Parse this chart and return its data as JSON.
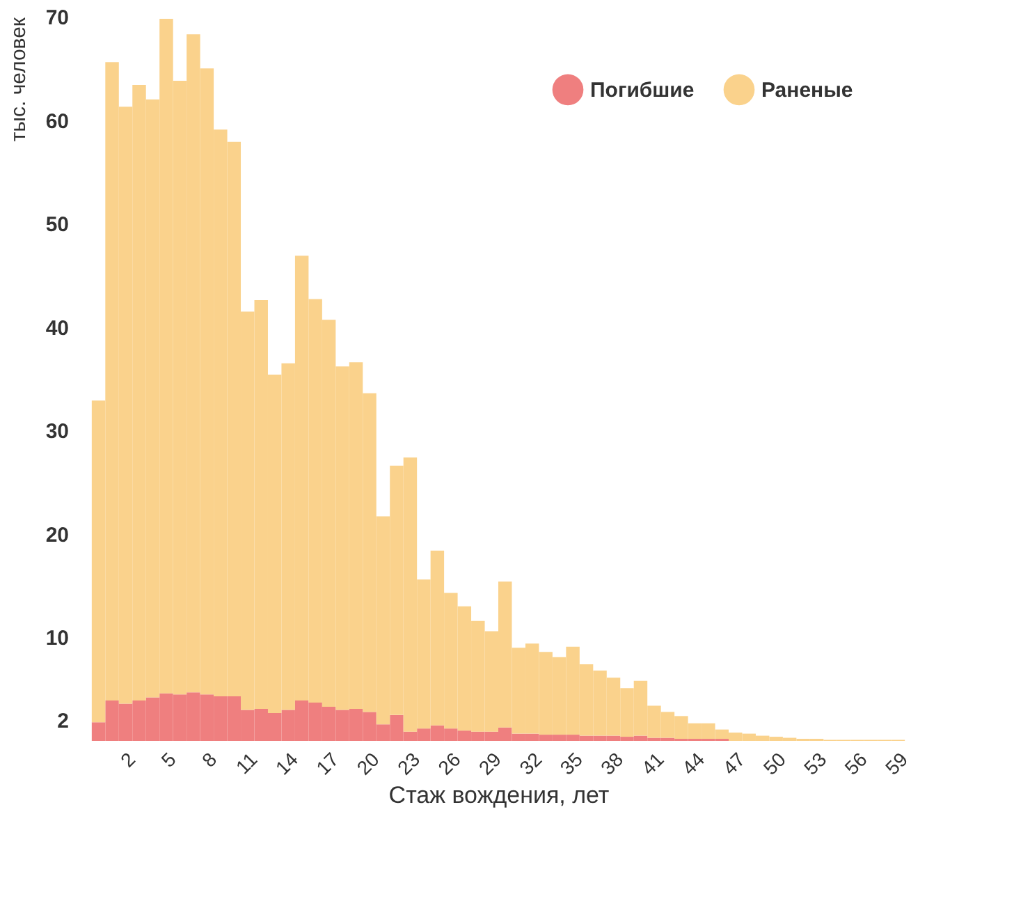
{
  "chart_data": {
    "type": "bar",
    "stacked": true,
    "xlabel": "Стаж вождения, лет",
    "ylabel": "тыс. человек",
    "categories": [
      null,
      null,
      "2",
      null,
      null,
      "5",
      null,
      null,
      "8",
      null,
      null,
      "11",
      null,
      null,
      "14",
      null,
      null,
      "17",
      null,
      null,
      "20",
      null,
      null,
      "23",
      null,
      null,
      "26",
      null,
      null,
      "29",
      null,
      null,
      "32",
      null,
      null,
      "35",
      null,
      null,
      "38",
      null,
      null,
      "41",
      null,
      null,
      "44",
      null,
      null,
      "47",
      null,
      null,
      "50",
      null,
      null,
      "53",
      null,
      null,
      "56",
      null,
      null,
      "59"
    ],
    "series": [
      {
        "name": "Погибшие",
        "color": "#ef7f7f",
        "values": [
          1.8,
          3.9,
          3.6,
          3.9,
          4.2,
          4.6,
          4.5,
          4.7,
          4.5,
          4.3,
          4.3,
          3.0,
          3.1,
          2.7,
          3.0,
          3.9,
          3.7,
          3.3,
          3.0,
          3.1,
          2.8,
          1.6,
          2.5,
          0.9,
          1.2,
          1.5,
          1.2,
          1.0,
          0.9,
          0.9,
          1.3,
          0.7,
          0.7,
          0.6,
          0.6,
          0.6,
          0.5,
          0.5,
          0.5,
          0.4,
          0.5,
          0.3,
          0.3,
          0.2,
          0.2,
          0.2,
          0.2,
          0,
          0,
          0,
          0,
          0,
          0,
          0,
          0,
          0,
          0,
          0,
          0,
          0
        ]
      },
      {
        "name": "Раненые",
        "color": "#fad28c",
        "values": [
          31.1,
          61.7,
          57.7,
          59.5,
          57.8,
          65.2,
          59.3,
          63.6,
          60.5,
          54.8,
          53.6,
          38.5,
          39.5,
          32.7,
          33.5,
          43.0,
          39.0,
          37.4,
          33.2,
          33.5,
          30.8,
          20.1,
          24.1,
          26.5,
          14.4,
          16.9,
          13.1,
          12.0,
          10.7,
          9.7,
          14.1,
          8.3,
          8.7,
          8.0,
          7.5,
          8.5,
          6.9,
          6.3,
          5.6,
          4.7,
          5.3,
          3.1,
          2.5,
          2.2,
          1.5,
          1.5,
          0.9,
          0.8,
          0.7,
          0.5,
          0.4,
          0.3,
          0.2,
          0.2,
          0.1,
          0.1,
          0.1,
          0.1,
          0.1,
          0.1
        ]
      }
    ],
    "ylim": [
      0,
      70
    ],
    "yticks": [
      2,
      10,
      20,
      30,
      40,
      50,
      60,
      70
    ],
    "grid": false,
    "legend": "top right"
  }
}
